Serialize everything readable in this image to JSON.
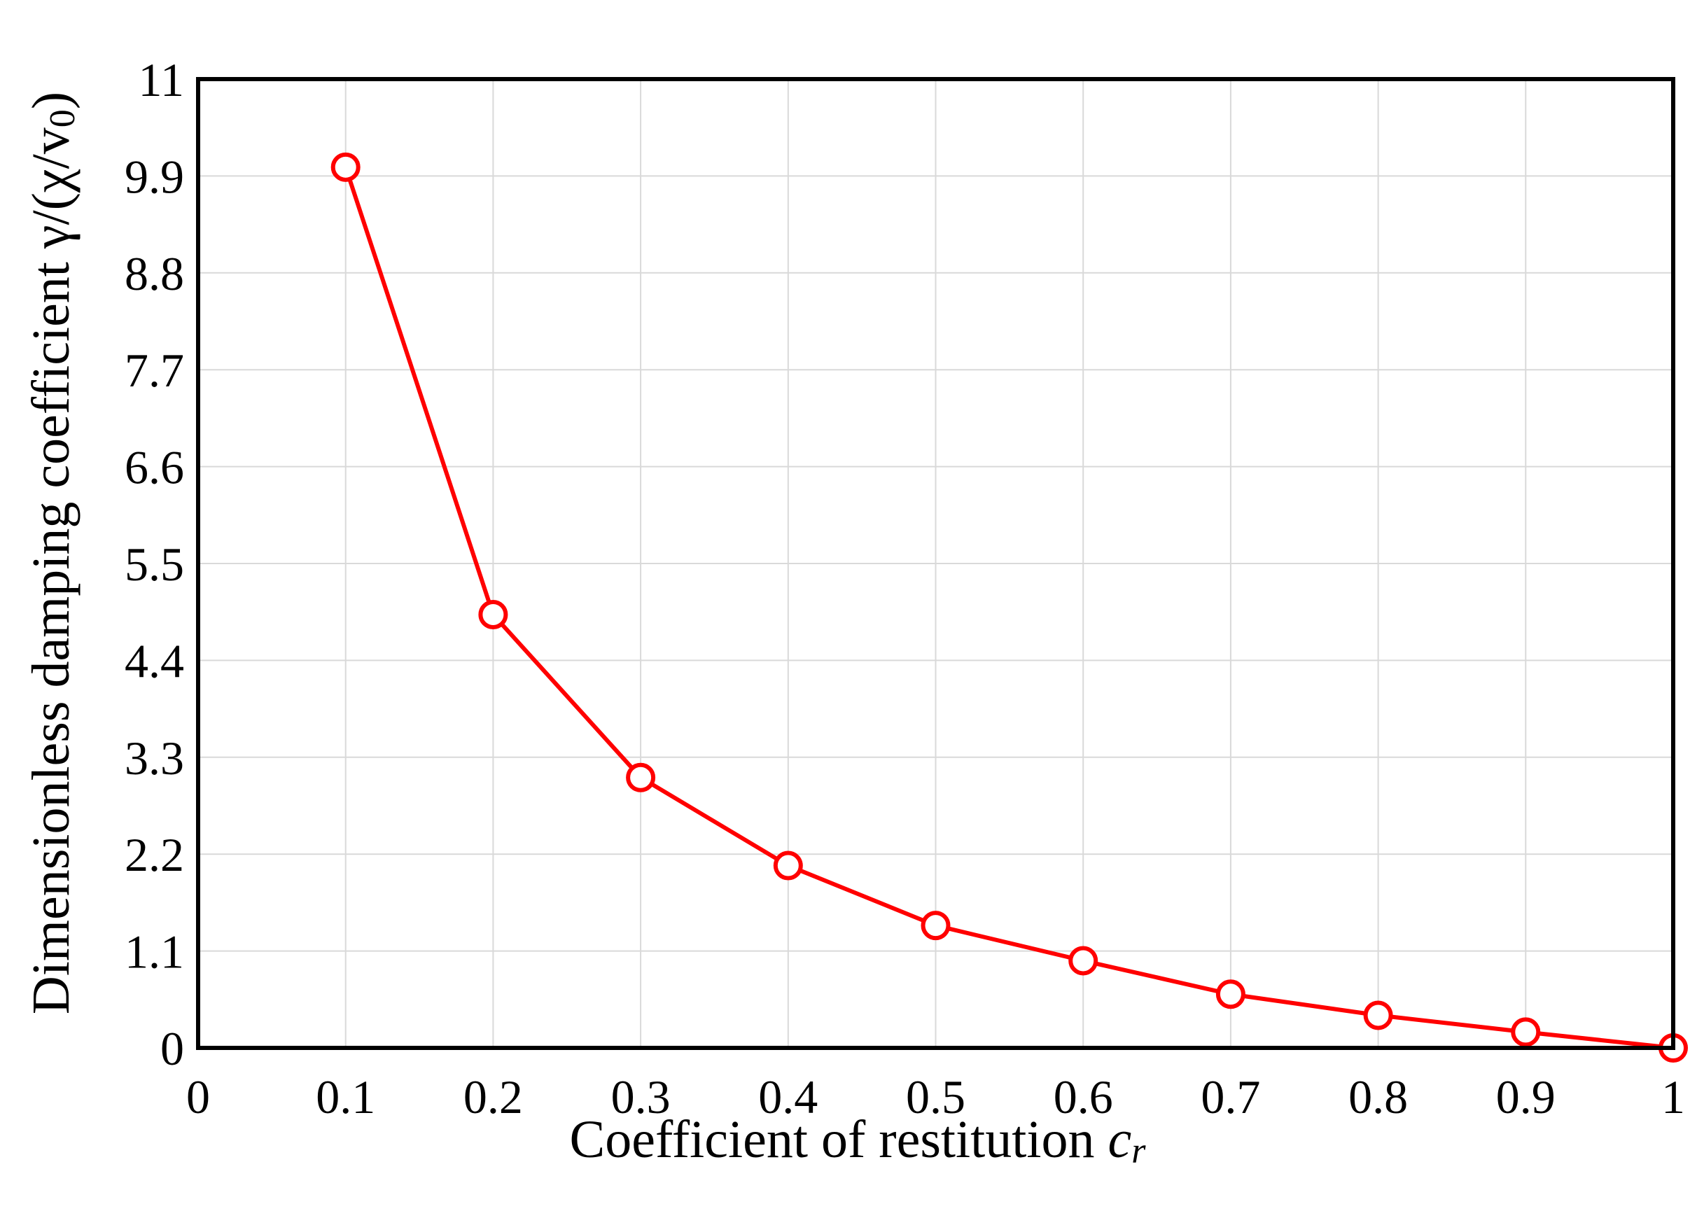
{
  "chart_data": {
    "type": "line",
    "title": "",
    "xlabel": "Coefficient of restitution",
    "xlabel_symbol": "c",
    "xlabel_subscript": "r",
    "ylabel": "Dimensionless damping coefficient γ/(χ/v0)",
    "ylabel_main": "Dimensionless damping coefficient γ/(χ/v",
    "ylabel_subscript": "0",
    "ylabel_close": ")",
    "xlim": [
      0,
      1
    ],
    "ylim": [
      0,
      11
    ],
    "xticks": [
      "0",
      "0.1",
      "0.2",
      "0.3",
      "0.4",
      "0.5",
      "0.6",
      "0.7",
      "0.8",
      "0.9",
      "1"
    ],
    "yticks": [
      "0",
      "1.1",
      "2.2",
      "3.3",
      "4.4",
      "5.5",
      "6.6",
      "7.7",
      "8.8",
      "9.9",
      "11"
    ],
    "grid": true,
    "series": [
      {
        "color": "#ff0000",
        "marker": "open-circle",
        "x": [
          0.1,
          0.2,
          0.3,
          0.4,
          0.5,
          0.6,
          0.7,
          0.8,
          0.9,
          1.0
        ],
        "y": [
          10.0,
          4.92,
          3.07,
          2.07,
          1.39,
          0.99,
          0.61,
          0.37,
          0.18,
          0.0
        ]
      }
    ]
  }
}
